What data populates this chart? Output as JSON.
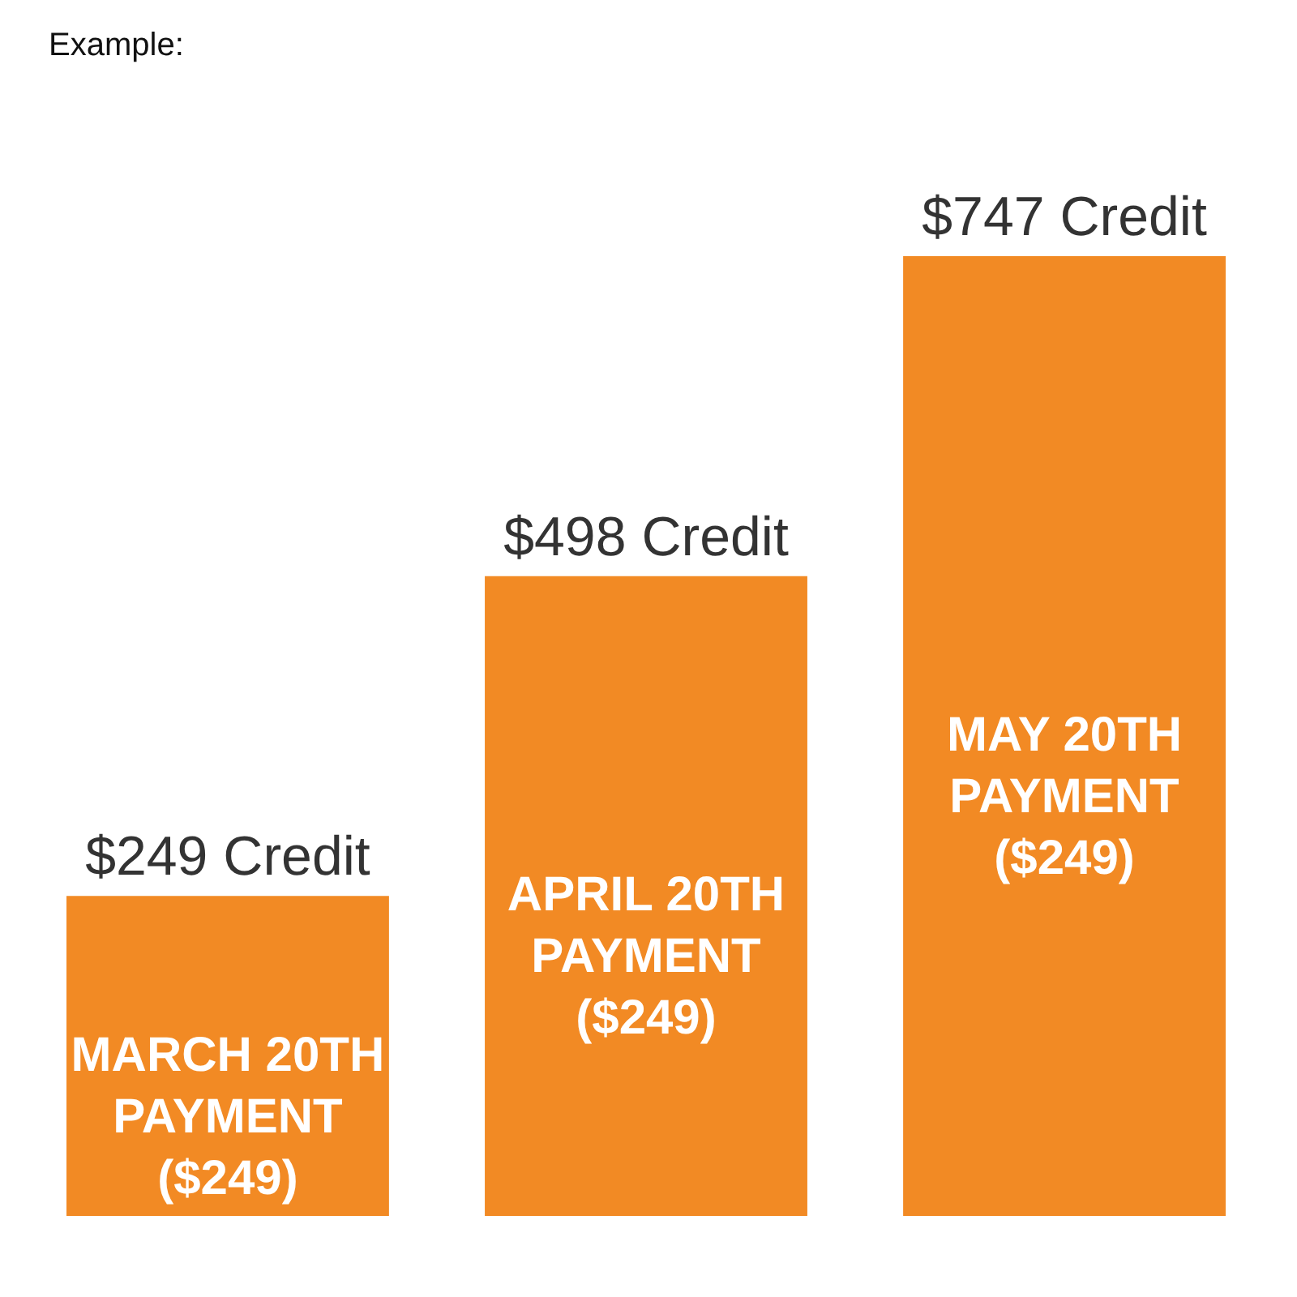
{
  "chart_data": {
    "type": "bar",
    "title": "Example:",
    "categories": [
      "MARCH 20TH\nPAYMENT\n($249)",
      "APRIL 20TH\nPAYMENT\n($249)",
      "MAY 20TH\nPAYMENT\n($249)"
    ],
    "values": [
      249,
      498,
      747
    ],
    "value_labels": [
      "$249 Credit",
      "$498 Credit",
      "$747 Credit"
    ],
    "color": "#f28a24",
    "tick_labels": false
  }
}
